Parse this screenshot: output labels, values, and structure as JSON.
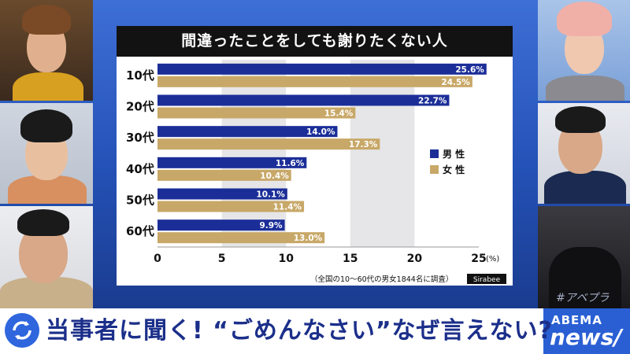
{
  "chart_data": {
    "type": "bar",
    "orientation": "horizontal",
    "title": "間違ったことをしても謝りたくない人",
    "categories": [
      "10代",
      "20代",
      "30代",
      "40代",
      "50代",
      "60代"
    ],
    "series": [
      {
        "name": "男 性",
        "color": "#1b2e98",
        "values": [
          25.6,
          22.7,
          14.0,
          11.6,
          10.1,
          9.9
        ],
        "labels": [
          "25.6%",
          "22.7%",
          "14.0%",
          "11.6%",
          "10.1%",
          "9.9%"
        ]
      },
      {
        "name": "女 性",
        "color": "#c8a868",
        "values": [
          24.5,
          15.4,
          17.3,
          10.4,
          11.4,
          13.0
        ],
        "labels": [
          "24.5%",
          "15.4%",
          "17.3%",
          "10.4%",
          "11.4%",
          "13.0%"
        ]
      }
    ],
    "xlim": [
      0,
      25
    ],
    "xticks": [
      "0",
      "5",
      "10",
      "15",
      "20",
      "25"
    ],
    "xunit": "(%)",
    "legend": "right",
    "source": "（全国の10～60代の男女1844名に調査）",
    "credit": "Sirabee"
  },
  "ticker": {
    "headline": "当事者に聞く! “ごめんなさい”なぜ言えない?",
    "brand_top": "ABEMA",
    "brand_bottom": "news/"
  },
  "watermark": "#アベプラ"
}
